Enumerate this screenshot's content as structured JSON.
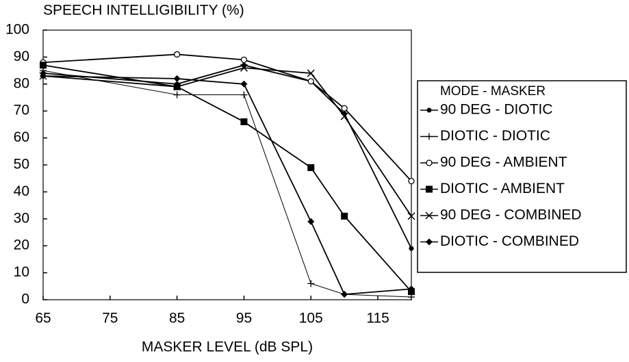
{
  "chart_data": {
    "type": "line",
    "title": "SPEECH INTELLIGIBILITY (%)",
    "x_label": "MASKER LEVEL (dB SPL)",
    "legend_title": "MODE - MASKER",
    "legend": "right",
    "x": [
      65,
      85,
      95,
      105,
      110,
      120
    ],
    "xlim": [
      65,
      120
    ],
    "xticks": [
      65,
      75,
      85,
      95,
      105,
      115
    ],
    "ylim": [
      0,
      100
    ],
    "yticks": [
      0,
      10,
      20,
      30,
      40,
      50,
      60,
      70,
      80,
      90,
      100
    ],
    "series": [
      {
        "name": "90 DEG - DIOTIC",
        "color": "#000000",
        "marker": "dot",
        "values": [
          84,
          80,
          87,
          81,
          69,
          19
        ]
      },
      {
        "name": "DIOTIC - DIOTIC",
        "color": "#000000",
        "marker": "plus",
        "values": [
          85,
          76,
          76,
          6,
          2,
          1
        ]
      },
      {
        "name": "90 DEG - AMBIENT",
        "color": "#000000",
        "marker": "circle",
        "values": [
          88,
          91,
          89,
          81,
          71,
          44
        ]
      },
      {
        "name": "DIOTIC - AMBIENT",
        "color": "#000000",
        "marker": "square",
        "values": [
          87,
          79,
          66,
          49,
          31,
          3
        ]
      },
      {
        "name": "90 DEG - COMBINED",
        "color": "#000000",
        "marker": "x",
        "values": [
          83,
          79,
          86,
          84,
          68,
          31
        ]
      },
      {
        "name": "DIOTIC - COMBINED",
        "color": "#000000",
        "marker": "diamond",
        "values": [
          83,
          82,
          80,
          29,
          2,
          4
        ]
      }
    ]
  }
}
